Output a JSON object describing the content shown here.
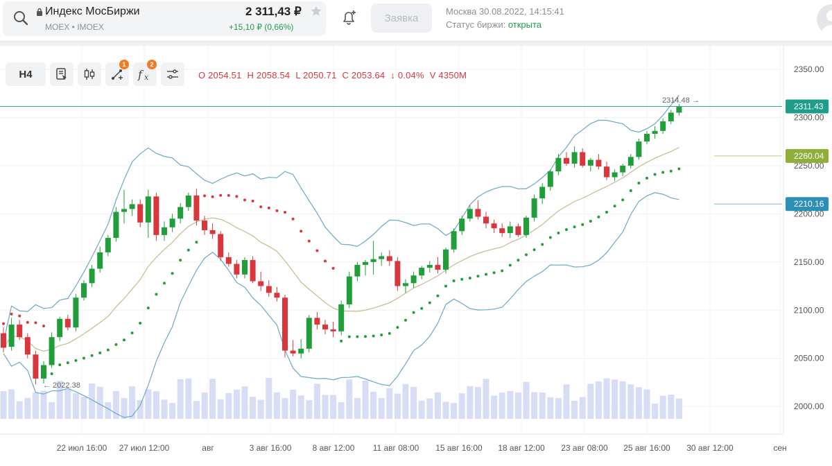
{
  "header": {
    "ticker_name": "Индекс МосБиржи",
    "ticker_sub": "MOEX • IMOEX",
    "price": "2 311,43 ₽",
    "change": "+15,10 ₽ (0,66%)",
    "order_button": "Заявка",
    "location_time": "Москва 30.08.2022, 14:15:41",
    "status_label": "Статус биржи: ",
    "status_value": "открыта",
    "icons": [
      "search-icon",
      "lock-icon",
      "star-icon",
      "bell-plus-icon",
      "avatar"
    ],
    "colors": {
      "up": "#1e9e4a",
      "accent_badge": "#f07b24"
    }
  },
  "toolbar": {
    "timeframe": "H4",
    "badges": {
      "indicators": "1",
      "functions": "2"
    },
    "icons": [
      "chart-type-icon",
      "candles-icon",
      "drawing-tools-icon",
      "functions-icon",
      "settings-sliders-icon"
    ]
  },
  "ohlc": {
    "o_key": "O",
    "o_val": "2054.51",
    "h_key": "H",
    "h_val": "2058.54",
    "l_key": "L",
    "l_val": "2050.71",
    "c_key": "C",
    "c_val": "2053.64",
    "change": "↓ 0.04%",
    "v_key": "V",
    "v_val": "4350M"
  },
  "chart_data": {
    "type": "candlestick",
    "title": "",
    "yticks": [
      2000,
      2050,
      2100,
      2150,
      2200,
      2250,
      2300,
      2350
    ],
    "ytick_labels": [
      "2000.00",
      "2050.00",
      "2100.00",
      "2150.00",
      "2200.00",
      "2250.00",
      "2300.00",
      "2350.00"
    ],
    "ylim": [
      1980,
      2360
    ],
    "xtick_labels": [
      "22 июл 16:00",
      "27 июл 12:00",
      "авг",
      "3 авг 16:00",
      "8 авг 12:00",
      "11 авг 08:00",
      "15 авг 16:00",
      "18 авг 12:00",
      "23 авг 08:00",
      "25 авг 16:00",
      "30 авг 12:00",
      "сен"
    ],
    "price_labels": [
      {
        "value": 2311.43,
        "text": "2311.43",
        "color": "#1e9e8a"
      },
      {
        "value": 2260.04,
        "text": "2260.04",
        "color": "#8fae3a"
      },
      {
        "value": 2210.16,
        "text": "2210.16",
        "color": "#2b8fb8"
      }
    ],
    "annotations": [
      {
        "text": "2314.48 →",
        "value": 2314.48
      },
      {
        "text": "← 2022.38",
        "value": 2022.38
      }
    ],
    "candles": [
      [
        2076,
        2082,
        2056,
        2061
      ],
      [
        2062,
        2092,
        2058,
        2085
      ],
      [
        2085,
        2090,
        2069,
        2072
      ],
      [
        2072,
        2076,
        2050,
        2054
      ],
      [
        2054,
        2058,
        2023,
        2029
      ],
      [
        2029,
        2047,
        2024,
        2043
      ],
      [
        2043,
        2077,
        2040,
        2072
      ],
      [
        2072,
        2093,
        2068,
        2091
      ],
      [
        2091,
        2095,
        2079,
        2082
      ],
      [
        2082,
        2117,
        2078,
        2113
      ],
      [
        2113,
        2131,
        2110,
        2128
      ],
      [
        2128,
        2147,
        2124,
        2143
      ],
      [
        2143,
        2166,
        2139,
        2160
      ],
      [
        2160,
        2178,
        2156,
        2175
      ],
      [
        2175,
        2207,
        2171,
        2202
      ],
      [
        2202,
        2225,
        2190,
        2205
      ],
      [
        2205,
        2215,
        2198,
        2210
      ],
      [
        2210,
        2215,
        2186,
        2191
      ],
      [
        2191,
        2225,
        2175,
        2218
      ],
      [
        2218,
        2222,
        2172,
        2178
      ],
      [
        2178,
        2192,
        2172,
        2186
      ],
      [
        2186,
        2200,
        2181,
        2195
      ],
      [
        2195,
        2211,
        2190,
        2207
      ],
      [
        2207,
        2222,
        2203,
        2219
      ],
      [
        2219,
        2226,
        2188,
        2193
      ],
      [
        2193,
        2198,
        2178,
        2183
      ],
      [
        2183,
        2190,
        2174,
        2179
      ],
      [
        2179,
        2182,
        2151,
        2155
      ],
      [
        2155,
        2160,
        2145,
        2148
      ],
      [
        2148,
        2152,
        2133,
        2137
      ],
      [
        2137,
        2155,
        2133,
        2152
      ],
      [
        2152,
        2156,
        2128,
        2130
      ],
      [
        2130,
        2140,
        2120,
        2125
      ],
      [
        2125,
        2131,
        2114,
        2118
      ],
      [
        2118,
        2124,
        2109,
        2113
      ],
      [
        2113,
        2116,
        2051,
        2058
      ],
      [
        2058,
        2069,
        2052,
        2055
      ],
      [
        2055,
        2070,
        2050,
        2060
      ],
      [
        2060,
        2095,
        2056,
        2092
      ],
      [
        2092,
        2098,
        2080,
        2085
      ],
      [
        2085,
        2090,
        2075,
        2080
      ],
      [
        2080,
        2088,
        2072,
        2078
      ],
      [
        2078,
        2110,
        2074,
        2106
      ],
      [
        2106,
        2140,
        2102,
        2135
      ],
      [
        2135,
        2150,
        2130,
        2147
      ],
      [
        2147,
        2152,
        2136,
        2150
      ],
      [
        2150,
        2172,
        2137,
        2153
      ],
      [
        2153,
        2160,
        2146,
        2156
      ],
      [
        2156,
        2162,
        2146,
        2151
      ],
      [
        2151,
        2155,
        2120,
        2125
      ],
      [
        2125,
        2132,
        2118,
        2128
      ],
      [
        2128,
        2140,
        2123,
        2136
      ],
      [
        2136,
        2146,
        2132,
        2144
      ],
      [
        2144,
        2151,
        2139,
        2147
      ],
      [
        2147,
        2155,
        2138,
        2142
      ],
      [
        2142,
        2165,
        2138,
        2163
      ],
      [
        2163,
        2185,
        2160,
        2182
      ],
      [
        2182,
        2198,
        2178,
        2195
      ],
      [
        2195,
        2209,
        2192,
        2205
      ],
      [
        2205,
        2214,
        2194,
        2197
      ],
      [
        2197,
        2202,
        2185,
        2190
      ],
      [
        2190,
        2194,
        2180,
        2185
      ],
      [
        2185,
        2190,
        2176,
        2180
      ],
      [
        2180,
        2192,
        2175,
        2187
      ],
      [
        2187,
        2190,
        2176,
        2178
      ],
      [
        2178,
        2198,
        2175,
        2196
      ],
      [
        2196,
        2220,
        2192,
        2216
      ],
      [
        2216,
        2232,
        2210,
        2228
      ],
      [
        2228,
        2246,
        2224,
        2244
      ],
      [
        2244,
        2262,
        2240,
        2258
      ],
      [
        2258,
        2264,
        2250,
        2252
      ],
      [
        2252,
        2270,
        2248,
        2264
      ],
      [
        2264,
        2268,
        2248,
        2250
      ],
      [
        2250,
        2258,
        2244,
        2256
      ],
      [
        2256,
        2262,
        2246,
        2249
      ],
      [
        2249,
        2254,
        2235,
        2238
      ],
      [
        2238,
        2246,
        2234,
        2243
      ],
      [
        2243,
        2252,
        2239,
        2250
      ],
      [
        2250,
        2262,
        2247,
        2259
      ],
      [
        2259,
        2278,
        2256,
        2275
      ],
      [
        2275,
        2286,
        2272,
        2283
      ],
      [
        2283,
        2291,
        2278,
        2286
      ],
      [
        2286,
        2299,
        2283,
        2296
      ],
      [
        2296,
        2308,
        2293,
        2305
      ],
      [
        2305,
        2314,
        2302,
        2311
      ]
    ],
    "volume_max": 8400
  }
}
